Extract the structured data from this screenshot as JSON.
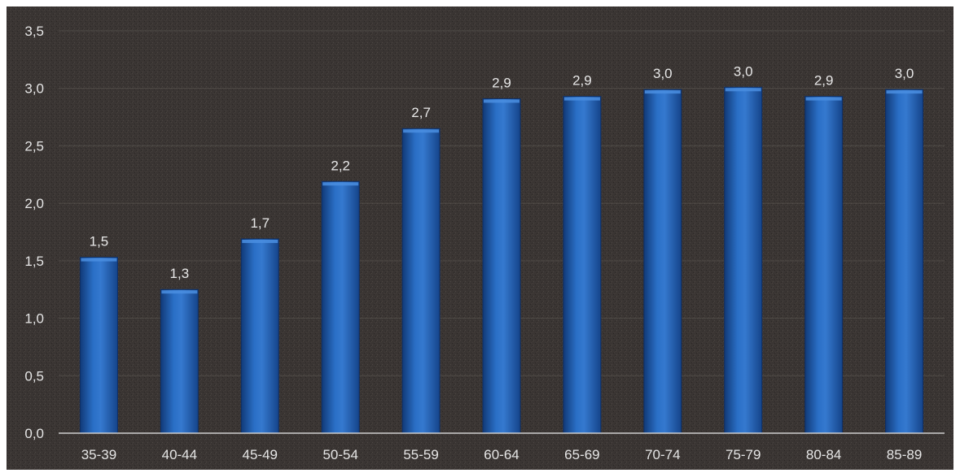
{
  "chart_data": {
    "type": "bar",
    "title": "",
    "xlabel": "",
    "ylabel": "",
    "categories": [
      "35-39",
      "40-44",
      "45-49",
      "50-54",
      "55-59",
      "60-64",
      "65-69",
      "70-74",
      "75-79",
      "80-84",
      "85-89"
    ],
    "values": [
      1.53,
      1.25,
      1.69,
      2.19,
      2.65,
      2.91,
      2.93,
      2.99,
      3.01,
      2.93,
      2.99
    ],
    "data_labels": [
      "1,5",
      "1,3",
      "1,7",
      "2,2",
      "2,7",
      "2,9",
      "2,9",
      "3,0",
      "3,0",
      "2,9",
      "3,0"
    ],
    "ylim": [
      0,
      3.5
    ],
    "yticks": [
      0,
      0.5,
      1.0,
      1.5,
      2.0,
      2.5,
      3.0,
      3.5
    ],
    "ytick_labels": [
      "0,0",
      "0,5",
      "1,0",
      "1,5",
      "2,0",
      "2,5",
      "3,0",
      "3,5"
    ],
    "grid": true,
    "legend": "none",
    "colors": {
      "background": "#3a3533",
      "bar": "#1f5fb4",
      "bar_highlight": "#4a8ee0",
      "bar_shadow": "#113a78",
      "text": "#e6e6e6",
      "axis": "#cfcfcf",
      "grid": "#6a6560"
    }
  }
}
